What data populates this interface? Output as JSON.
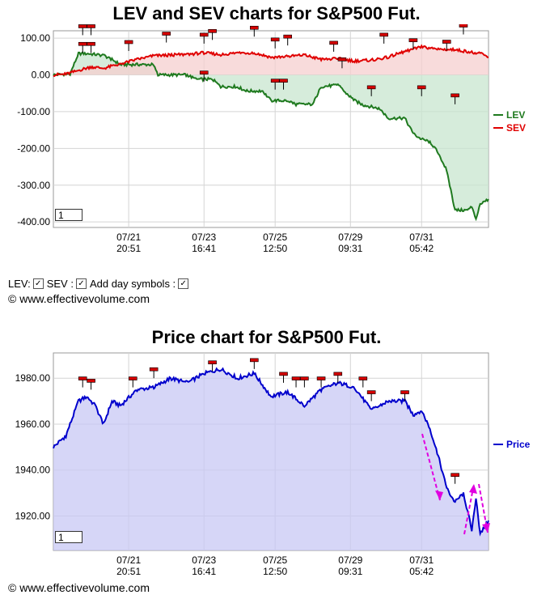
{
  "chart_data": [
    {
      "type": "line",
      "title": "LEV and SEV charts for S&P500 Fut.",
      "xlabel": "",
      "ylabel": "",
      "x_tick_labels": [
        {
          "date": "07/21",
          "time": "20:51"
        },
        {
          "date": "07/23",
          "time": "16:41"
        },
        {
          "date": "07/25",
          "time": "12:50"
        },
        {
          "date": "07/29",
          "time": "09:31"
        },
        {
          "date": "07/31",
          "time": "05:42"
        }
      ],
      "y_tick_labels": [
        "100.00",
        "0.00",
        "-100.00",
        "-200.00",
        "-300.00",
        "-400.00"
      ],
      "y_ticks": [
        100,
        0,
        -100,
        -200,
        -300,
        -400
      ],
      "ylim": [
        -415,
        120
      ],
      "grid": true,
      "legend_position": "right",
      "series": [
        {
          "name": "LEV",
          "color": "#1f7a1f",
          "fill": "#c8e6cf",
          "points": [
            [
              0,
              0
            ],
            [
              4,
              3
            ],
            [
              6,
              58
            ],
            [
              8,
              58
            ],
            [
              12,
              53
            ],
            [
              14,
              42
            ],
            [
              16,
              28
            ],
            [
              18,
              28
            ],
            [
              24,
              28
            ],
            [
              25,
              0
            ],
            [
              32,
              0
            ],
            [
              34,
              -12
            ],
            [
              38,
              -12
            ],
            [
              40,
              -32
            ],
            [
              44,
              -32
            ],
            [
              46,
              -44
            ],
            [
              50,
              -44
            ],
            [
              52,
              -70
            ],
            [
              56,
              -70
            ],
            [
              58,
              -80
            ],
            [
              62,
              -80
            ],
            [
              64,
              -32
            ],
            [
              68,
              -28
            ],
            [
              70,
              -50
            ],
            [
              72,
              -70
            ],
            [
              74,
              -82
            ],
            [
              78,
              -92
            ],
            [
              80,
              -118
            ],
            [
              84,
              -118
            ],
            [
              86,
              -160
            ],
            [
              88,
              -175
            ],
            [
              90,
              -182
            ],
            [
              92,
              -212
            ],
            [
              94,
              -260
            ],
            [
              96,
              -368
            ],
            [
              99,
              -368
            ],
            [
              100,
              -358
            ],
            [
              101,
              -395
            ],
            [
              102,
              -352
            ],
            [
              104,
              -338
            ]
          ]
        },
        {
          "name": "SEV",
          "color": "#e00000",
          "fill": "#f5cfcf",
          "points": [
            [
              0,
              0
            ],
            [
              3,
              2
            ],
            [
              6,
              12
            ],
            [
              9,
              22
            ],
            [
              12,
              18
            ],
            [
              16,
              30
            ],
            [
              20,
              42
            ],
            [
              24,
              52
            ],
            [
              28,
              54
            ],
            [
              32,
              56
            ],
            [
              36,
              60
            ],
            [
              40,
              55
            ],
            [
              44,
              60
            ],
            [
              48,
              60
            ],
            [
              52,
              48
            ],
            [
              56,
              50
            ],
            [
              60,
              54
            ],
            [
              64,
              42
            ],
            [
              68,
              44
            ],
            [
              72,
              38
            ],
            [
              76,
              40
            ],
            [
              80,
              48
            ],
            [
              84,
              64
            ],
            [
              88,
              76
            ],
            [
              92,
              70
            ],
            [
              96,
              68
            ],
            [
              100,
              62
            ],
            [
              102,
              58
            ],
            [
              104,
              48
            ]
          ]
        }
      ]
    },
    {
      "type": "area",
      "title": "Price chart for S&P500 Fut.",
      "xlabel": "",
      "ylabel": "",
      "x_tick_labels": [
        {
          "date": "07/21",
          "time": "20:51"
        },
        {
          "date": "07/23",
          "time": "16:41"
        },
        {
          "date": "07/25",
          "time": "12:50"
        },
        {
          "date": "07/29",
          "time": "09:31"
        },
        {
          "date": "07/31",
          "time": "05:42"
        }
      ],
      "y_tick_labels": [
        "1980.00",
        "1960.00",
        "1940.00",
        "1920.00"
      ],
      "y_ticks": [
        1980,
        1960,
        1940,
        1920
      ],
      "ylim": [
        1905,
        1991
      ],
      "grid": true,
      "legend_position": "right",
      "series": [
        {
          "name": "Price",
          "color": "#0000cc",
          "fill": "#c8c8f4",
          "points": [
            [
              0,
              1950
            ],
            [
              3,
              1955
            ],
            [
              6,
              1970
            ],
            [
              8,
              1972
            ],
            [
              10,
              1968
            ],
            [
              12,
              1960
            ],
            [
              14,
              1970
            ],
            [
              16,
              1968
            ],
            [
              20,
              1975
            ],
            [
              24,
              1976
            ],
            [
              28,
              1980
            ],
            [
              32,
              1978
            ],
            [
              36,
              1982
            ],
            [
              40,
              1984
            ],
            [
              44,
              1980
            ],
            [
              48,
              1982
            ],
            [
              52,
              1972
            ],
            [
              56,
              1974
            ],
            [
              60,
              1968
            ],
            [
              64,
              1975
            ],
            [
              68,
              1978
            ],
            [
              72,
              1976
            ],
            [
              76,
              1966
            ],
            [
              80,
              1970
            ],
            [
              84,
              1970
            ],
            [
              86,
              1964
            ],
            [
              88,
              1966
            ],
            [
              90,
              1958
            ],
            [
              92,
              1946
            ],
            [
              94,
              1932
            ],
            [
              96,
              1926
            ],
            [
              98,
              1930
            ],
            [
              100,
              1914
            ],
            [
              101,
              1928
            ],
            [
              102,
              1912
            ],
            [
              104,
              1918
            ]
          ]
        }
      ]
    }
  ],
  "lev_chart": {
    "page_box": "1",
    "legend": [
      {
        "label": "LEV",
        "color": "#1f7a1f"
      },
      {
        "label": "SEV",
        "color": "#e00000"
      }
    ]
  },
  "price_chart": {
    "page_box": "1",
    "legend": [
      {
        "label": "Price",
        "color": "#0000cc"
      }
    ]
  },
  "controls": {
    "lev_label": "LEV:",
    "sev_label": "SEV :",
    "day_symbols_label": "Add day symbols :",
    "lev_checked": true,
    "sev_checked": true,
    "day_symbols_checked": true
  },
  "copyright": "© www.effectivevolume.com",
  "colors": {
    "grid": "#d4d4d4",
    "axis": "#999999",
    "marker": "#d40000",
    "arrow": "#e000e0"
  }
}
